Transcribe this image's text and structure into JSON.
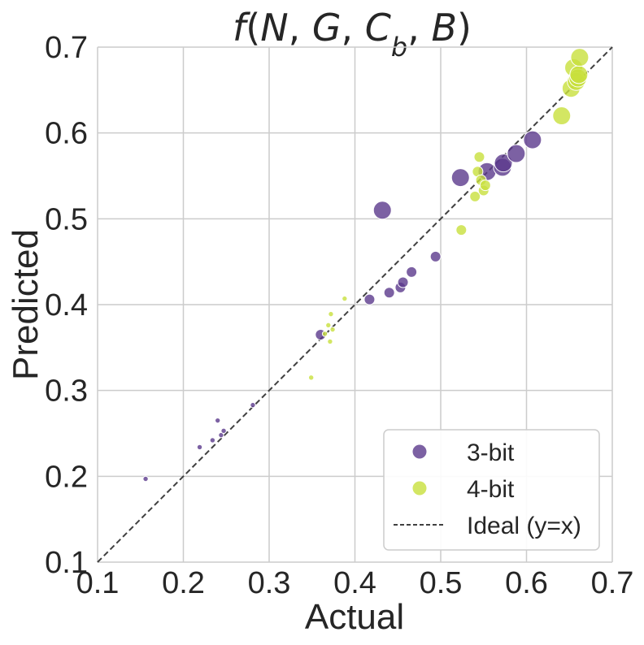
{
  "chart_data": {
    "type": "scatter",
    "title": "f(N, G, C_b, B)",
    "title_parts": {
      "f": "f",
      "open": "(",
      "N": "N",
      "sep": ", ",
      "G": "G",
      "C": "C",
      "b": "b",
      "B": "B",
      "close": ")"
    },
    "xlabel": "Actual",
    "ylabel": "Predicted",
    "xlim": [
      0.1,
      0.7
    ],
    "ylim": [
      0.1,
      0.7
    ],
    "xticks": [
      "0.1",
      "0.2",
      "0.3",
      "0.4",
      "0.5",
      "0.6",
      "0.7"
    ],
    "yticks": [
      "0.1",
      "0.2",
      "0.3",
      "0.4",
      "0.5",
      "0.6",
      "0.7"
    ],
    "grid": true,
    "legend_position": "bottom-right",
    "ideal_line": {
      "label": "Ideal (y=x)",
      "color": "#404040"
    },
    "series": [
      {
        "name": "3-bit",
        "color": "#5b3a8c",
        "points": [
          {
            "x": 0.156,
            "y": 0.197,
            "size": 1
          },
          {
            "x": 0.219,
            "y": 0.234,
            "size": 1
          },
          {
            "x": 0.234,
            "y": 0.242,
            "size": 1
          },
          {
            "x": 0.24,
            "y": 0.265,
            "size": 1
          },
          {
            "x": 0.244,
            "y": 0.248,
            "size": 1
          },
          {
            "x": 0.247,
            "y": 0.253,
            "size": 1
          },
          {
            "x": 0.281,
            "y": 0.283,
            "size": 1
          },
          {
            "x": 0.36,
            "y": 0.365,
            "size": 3
          },
          {
            "x": 0.417,
            "y": 0.406,
            "size": 3
          },
          {
            "x": 0.44,
            "y": 0.414,
            "size": 3
          },
          {
            "x": 0.453,
            "y": 0.42,
            "size": 3
          },
          {
            "x": 0.456,
            "y": 0.426,
            "size": 3
          },
          {
            "x": 0.466,
            "y": 0.438,
            "size": 3
          },
          {
            "x": 0.494,
            "y": 0.456,
            "size": 3
          },
          {
            "x": 0.432,
            "y": 0.51,
            "size": 5
          },
          {
            "x": 0.523,
            "y": 0.548,
            "size": 5
          },
          {
            "x": 0.554,
            "y": 0.555,
            "size": 5
          },
          {
            "x": 0.572,
            "y": 0.56,
            "size": 5
          },
          {
            "x": 0.573,
            "y": 0.565,
            "size": 5
          },
          {
            "x": 0.588,
            "y": 0.576,
            "size": 5
          },
          {
            "x": 0.607,
            "y": 0.592,
            "size": 5
          }
        ]
      },
      {
        "name": "4-bit",
        "color": "#c8e03c",
        "points": [
          {
            "x": 0.349,
            "y": 0.315,
            "size": 1
          },
          {
            "x": 0.365,
            "y": 0.366,
            "size": 1
          },
          {
            "x": 0.369,
            "y": 0.376,
            "size": 1
          },
          {
            "x": 0.371,
            "y": 0.357,
            "size": 1
          },
          {
            "x": 0.372,
            "y": 0.389,
            "size": 1
          },
          {
            "x": 0.374,
            "y": 0.371,
            "size": 1
          },
          {
            "x": 0.388,
            "y": 0.407,
            "size": 1
          },
          {
            "x": 0.524,
            "y": 0.487,
            "size": 3
          },
          {
            "x": 0.54,
            "y": 0.526,
            "size": 3
          },
          {
            "x": 0.543,
            "y": 0.555,
            "size": 3
          },
          {
            "x": 0.545,
            "y": 0.572,
            "size": 3
          },
          {
            "x": 0.547,
            "y": 0.545,
            "size": 3
          },
          {
            "x": 0.55,
            "y": 0.533,
            "size": 3
          },
          {
            "x": 0.552,
            "y": 0.539,
            "size": 3
          },
          {
            "x": 0.641,
            "y": 0.62,
            "size": 5
          },
          {
            "x": 0.652,
            "y": 0.652,
            "size": 5
          },
          {
            "x": 0.655,
            "y": 0.676,
            "size": 5
          },
          {
            "x": 0.658,
            "y": 0.66,
            "size": 5
          },
          {
            "x": 0.66,
            "y": 0.664,
            "size": 5
          },
          {
            "x": 0.661,
            "y": 0.668,
            "size": 5
          },
          {
            "x": 0.662,
            "y": 0.688,
            "size": 5
          }
        ]
      }
    ]
  }
}
